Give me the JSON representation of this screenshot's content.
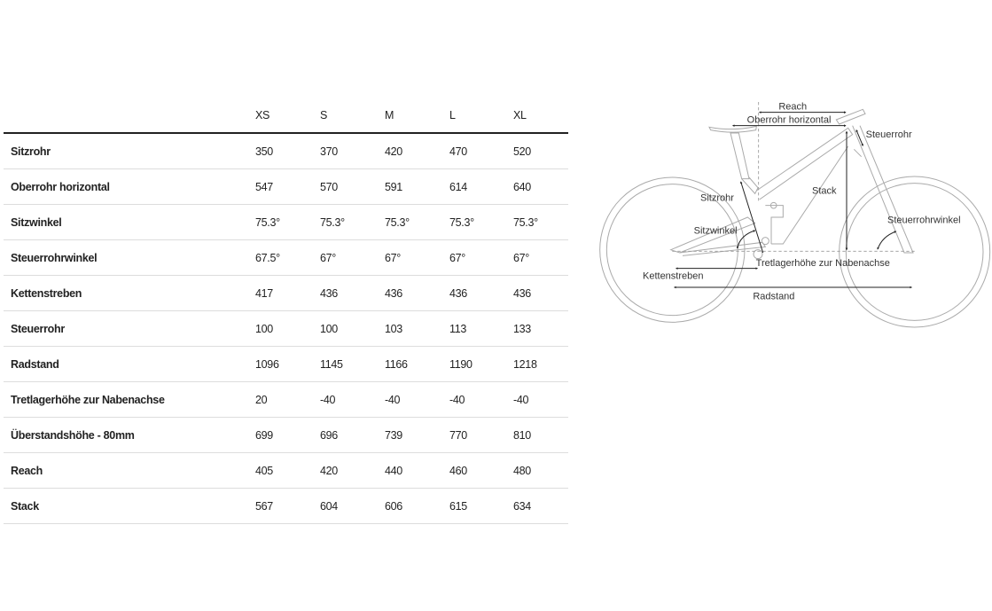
{
  "table": {
    "sizes": [
      "XS",
      "S",
      "M",
      "L",
      "XL"
    ],
    "rows": [
      {
        "label": "Sitzrohr",
        "values": [
          "350",
          "370",
          "420",
          "470",
          "520"
        ]
      },
      {
        "label": "Oberrohr horizontal",
        "values": [
          "547",
          "570",
          "591",
          "614",
          "640"
        ]
      },
      {
        "label": "Sitzwinkel",
        "values": [
          "75.3°",
          "75.3°",
          "75.3°",
          "75.3°",
          "75.3°"
        ]
      },
      {
        "label": "Steuerrohrwinkel",
        "values": [
          "67.5°",
          "67°",
          "67°",
          "67°",
          "67°"
        ]
      },
      {
        "label": "Kettenstreben",
        "values": [
          "417",
          "436",
          "436",
          "436",
          "436"
        ]
      },
      {
        "label": "Steuerrohr",
        "values": [
          "100",
          "100",
          "103",
          "113",
          "133"
        ]
      },
      {
        "label": "Radstand",
        "values": [
          "1096",
          "1145",
          "1166",
          "1190",
          "1218"
        ]
      },
      {
        "label": "Tretlagerhöhe zur Nabenachse",
        "values": [
          "20",
          "-40",
          "-40",
          "-40",
          "-40"
        ]
      },
      {
        "label": "Überstandshöhe - 80mm",
        "values": [
          "699",
          "696",
          "739",
          "770",
          "810"
        ]
      },
      {
        "label": "Reach",
        "values": [
          "405",
          "420",
          "440",
          "460",
          "480"
        ]
      },
      {
        "label": "Stack",
        "values": [
          "567",
          "604",
          "606",
          "615",
          "634"
        ]
      }
    ]
  },
  "diagram": {
    "reach": "Reach",
    "oberrohr": "Oberrohr horizontal",
    "steuerrohr": "Steuerrohr",
    "stack": "Stack",
    "sitzrohr": "Sitzrohr",
    "sitzwinkel": "Sitzwinkel",
    "steuerrohrwinkel": "Steuerrohrwinkel",
    "tretlager": "Tretlagerhöhe zur Nabenachse",
    "kettenstreben": "Kettenstreben",
    "radstand": "Radstand"
  }
}
